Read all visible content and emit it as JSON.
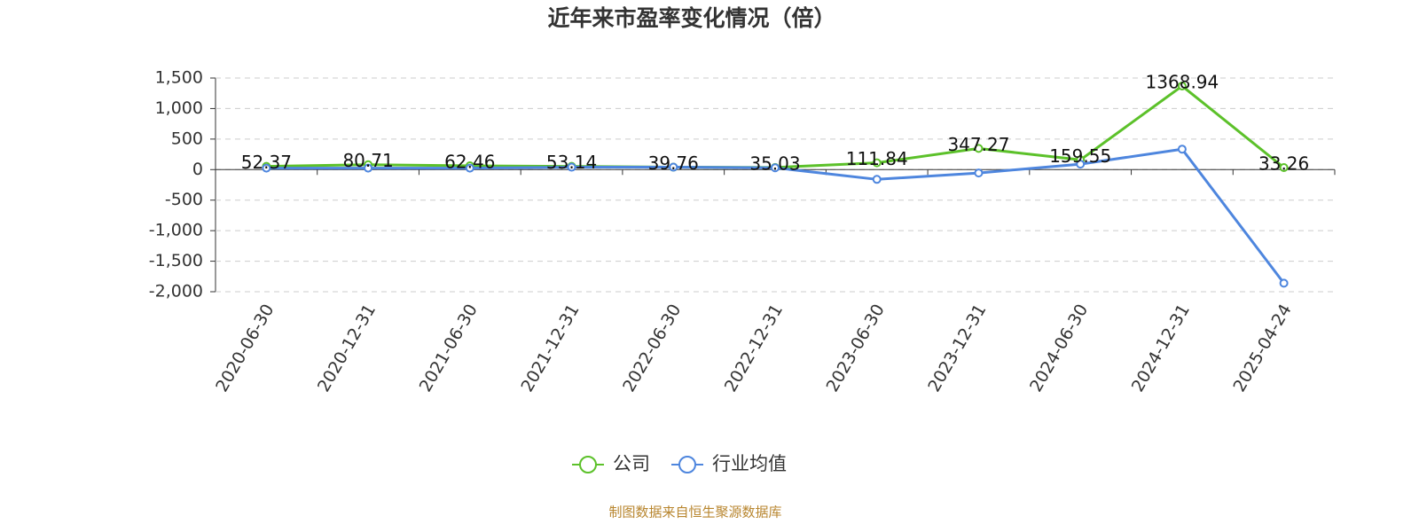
{
  "chart_data": {
    "type": "line",
    "title": "近年来市盈率变化情况（倍）",
    "categories": [
      "2020-06-30",
      "2020-12-31",
      "2021-06-30",
      "2021-12-31",
      "2022-06-30",
      "2022-12-31",
      "2023-06-30",
      "2023-12-31",
      "2024-06-30",
      "2024-12-31",
      "2025-04-24"
    ],
    "series": [
      {
        "name": "公司",
        "color": "#5cc12a",
        "values": [
          52.37,
          80.71,
          62.46,
          53.14,
          39.76,
          35.03,
          111.84,
          347.27,
          159.55,
          1368.94,
          33.26
        ],
        "show_labels": true
      },
      {
        "name": "行业均值",
        "color": "#4e86de",
        "values": [
          25,
          25,
          25,
          40,
          40,
          30,
          -160,
          -55,
          90,
          335,
          -1860
        ]
      }
    ],
    "ylim": [
      -2000,
      1500
    ],
    "yticks": [
      {
        "value": 1500,
        "label": "1,500"
      },
      {
        "value": 1000,
        "label": "1,000"
      },
      500,
      0,
      -500,
      {
        "value": -1000,
        "label": "-1,000"
      },
      {
        "value": -1500,
        "label": "-1,500"
      },
      {
        "value": -2000,
        "label": "-2,000"
      }
    ],
    "grid": true,
    "source": "制图数据来自恒生聚源数据库"
  }
}
